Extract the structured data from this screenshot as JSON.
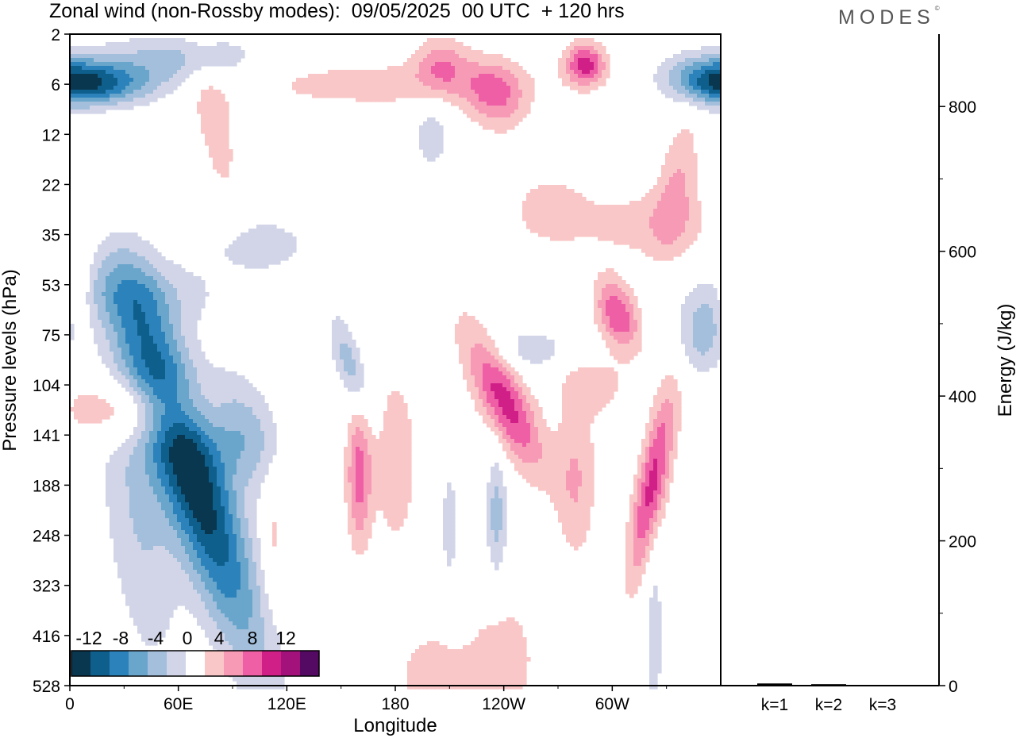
{
  "title": "Zonal wind (non-Rossby modes):  09/05/2025  00 UTC  + 120 hrs",
  "logo": "MODES",
  "logo_mark": "©",
  "colors": {
    "neg": [
      "#0a3750",
      "#0f5f8d",
      "#2c83bb",
      "#6aa5cc",
      "#a3bfdc",
      "#d2d5e8"
    ],
    "zero": "#ffffff",
    "pos": [
      "#f9c7c7",
      "#f79ab6",
      "#ee5fa5",
      "#d02088",
      "#a3117a",
      "#540a63"
    ]
  },
  "chart_data": [
    {
      "type": "heatmap",
      "title": "Zonal wind (non-Rossby modes):  09/05/2025  00 UTC  + 120 hrs",
      "xlabel": "Longitude",
      "ylabel": "Pressure levels (hPa)",
      "x_ticks": [
        "0",
        "60E",
        "120E",
        "180",
        "120W",
        "60W"
      ],
      "y_ticks": [
        "2",
        "6",
        "12",
        "22",
        "35",
        "53",
        "75",
        "104",
        "141",
        "188",
        "248",
        "323",
        "416",
        "528"
      ],
      "xlim": [
        0,
        360
      ],
      "colorbar": {
        "labels": [
          "-12",
          "-8",
          "-4",
          "0",
          "4",
          "8",
          "12"
        ],
        "levels": [
          -14,
          -12,
          -10,
          -8,
          -6,
          -4,
          -2,
          2,
          4,
          6,
          8,
          10,
          12,
          14
        ]
      },
      "features": [
        {
          "lon": 65,
          "lev": 8.5,
          "value": -14,
          "slon": 14,
          "slev": 2.6,
          "tilt": 0.9
        },
        {
          "lon": 95,
          "lev": 7.9,
          "value": -6,
          "slon": 14,
          "slev": 0.8,
          "tilt": 0.6
        },
        {
          "lon": 38,
          "lev": 9.6,
          "value": -4,
          "slon": 14,
          "slev": 2.2,
          "tilt": 0.3
        },
        {
          "lon": 18,
          "lev": 1.0,
          "value": -8,
          "slon": 22,
          "slev": 0.3,
          "tilt": 0.2
        },
        {
          "lon": 355,
          "lev": 0.9,
          "value": -8,
          "slon": 18,
          "slev": 0.35,
          "tilt": 0.3
        },
        {
          "lon": 60,
          "lev": 0.5,
          "value": -5,
          "slon": 30,
          "slev": 0.35,
          "tilt": 0.0
        },
        {
          "lon": 40,
          "lev": 5.2,
          "value": -3,
          "slon": 35,
          "slev": 0.5,
          "tilt": 0.2
        },
        {
          "lon": 155,
          "lev": 6.6,
          "value": -5,
          "slon": 6,
          "slev": 0.7,
          "tilt": 0.8
        },
        {
          "lon": 236,
          "lev": 9.6,
          "value": -5,
          "slon": 4,
          "slev": 0.9,
          "tilt": 0.0
        },
        {
          "lon": 350,
          "lev": 6.0,
          "value": -5,
          "slon": 10,
          "slev": 0.6,
          "tilt": 0.0
        },
        {
          "lon": 210,
          "lev": 9.8,
          "value": -3,
          "slon": 3.5,
          "slev": 1.0,
          "tilt": 0.0
        },
        {
          "lon": 323,
          "lev": 12.0,
          "value": -3,
          "slon": 4,
          "slev": 1.5,
          "tilt": 0.0
        },
        {
          "lon": 200,
          "lev": 2.0,
          "value": -3,
          "slon": 8,
          "slev": 0.6,
          "tilt": 0.0
        },
        {
          "lon": 255,
          "lev": 6.3,
          "value": -3,
          "slon": 18,
          "slev": 0.35,
          "tilt": 0.0
        },
        {
          "lon": 105,
          "lev": 4.2,
          "value": -3,
          "slon": 22,
          "slev": 0.45,
          "tilt": 0.0
        },
        {
          "lon": 40,
          "lev": 7.5,
          "value": 6,
          "slon": 28,
          "slev": 0.45,
          "tilt": 0.3
        },
        {
          "lon": 160,
          "lev": 8.8,
          "value": 7,
          "slon": 5,
          "slev": 1.0,
          "tilt": 0.0
        },
        {
          "lon": 180,
          "lev": 8.5,
          "value": 4,
          "slon": 8,
          "slev": 1.2,
          "tilt": 0.0
        },
        {
          "lon": 240,
          "lev": 7.3,
          "value": 9,
          "slon": 10,
          "slev": 1.0,
          "tilt": 1.2
        },
        {
          "lon": 280,
          "lev": 8.8,
          "value": 4,
          "slon": 8,
          "slev": 1.2,
          "tilt": 0.0
        },
        {
          "lon": 322,
          "lev": 9.0,
          "value": 9,
          "slon": 6,
          "slev": 1.3,
          "tilt": -0.5
        },
        {
          "lon": 303,
          "lev": 5.6,
          "value": 8,
          "slon": 8,
          "slev": 0.5,
          "tilt": 0.6
        },
        {
          "lon": 285,
          "lev": 0.6,
          "value": 9,
          "slon": 8,
          "slev": 0.3,
          "tilt": 0.0
        },
        {
          "lon": 235,
          "lev": 1.2,
          "value": 6,
          "slon": 12,
          "slev": 0.5,
          "tilt": 0.4
        },
        {
          "lon": 205,
          "lev": 0.6,
          "value": 5,
          "slon": 10,
          "slev": 0.4,
          "tilt": 0.0
        },
        {
          "lon": 240,
          "lev": 12.5,
          "value": 3,
          "slon": 15,
          "slev": 1.0,
          "tilt": 0.0
        },
        {
          "lon": 200,
          "lev": 12.8,
          "value": 3,
          "slon": 15,
          "slev": 0.7,
          "tilt": 0.0
        },
        {
          "lon": 80,
          "lev": 1.8,
          "value": 3,
          "slon": 8,
          "slev": 1.2,
          "tilt": 0.5
        },
        {
          "lon": 20,
          "lev": 3.0,
          "value": 3,
          "slon": 10,
          "slev": 0.7,
          "tilt": 0.0
        },
        {
          "lon": 336,
          "lev": 3.0,
          "value": 4,
          "slon": 8,
          "slev": 1.0,
          "tilt": -0.4
        },
        {
          "lon": 320,
          "lev": 3.8,
          "value": 3,
          "slon": 30,
          "slev": 0.5,
          "tilt": 0.3
        },
        {
          "lon": 170,
          "lev": 1.0,
          "value": 3,
          "slon": 60,
          "slev": 0.35,
          "tilt": 0.0
        },
        {
          "lon": 265,
          "lev": 3.5,
          "value": 3,
          "slon": 15,
          "slev": 0.5,
          "tilt": 0.0
        },
        {
          "lon": 290,
          "lev": 7.0,
          "value": 3,
          "slon": 14,
          "slev": 0.4,
          "tilt": 0.0
        },
        {
          "lon": 112,
          "lev": 10.0,
          "value": 3,
          "slon": 4,
          "slev": 1.0,
          "tilt": 0.0
        },
        {
          "lon": 5,
          "lev": 5.0,
          "value": 3,
          "slon": 5,
          "slev": 1.0,
          "tilt": 0.0
        }
      ]
    },
    {
      "type": "bar",
      "categories": [
        "k=1",
        "k=2",
        "k=3"
      ],
      "values": [
        3,
        2,
        1
      ],
      "ylabel": "Energy (J/kg)",
      "y_ticks": [
        "0",
        "200",
        "400",
        "600",
        "800"
      ],
      "ylim": [
        0,
        900
      ]
    }
  ]
}
